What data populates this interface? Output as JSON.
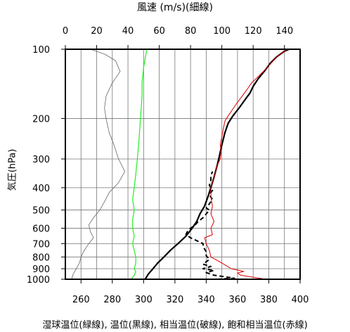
{
  "chart_data": {
    "type": "line",
    "title_top": "風速 (m/s)(細線)",
    "ylabel": "気圧(hPa)",
    "caption": "湿球温位(緑線), 温位(黒線), 相当温位(破線), 飽和相当温位(赤線)",
    "y_scale": "log",
    "ylim": [
      1000,
      100
    ],
    "y_ticks": [
      100,
      200,
      300,
      400,
      500,
      600,
      700,
      800,
      900,
      1000
    ],
    "x_bottom": {
      "ticks": [
        260,
        280,
        300,
        320,
        340,
        360,
        380,
        400
      ],
      "lim": [
        250,
        400
      ]
    },
    "x_top": {
      "ticks": [
        0,
        20,
        40,
        60,
        80,
        100,
        120,
        140
      ],
      "lim": [
        0,
        150
      ]
    },
    "grid": true,
    "series": [
      {
        "color": "#000000",
        "style": "solid",
        "width": 2.2,
        "axis": "bottom",
        "points": [
          [
            301,
            1000
          ],
          [
            303,
            950
          ],
          [
            306,
            900
          ],
          [
            309,
            850
          ],
          [
            313,
            800
          ],
          [
            317,
            750
          ],
          [
            322,
            700
          ],
          [
            327,
            650
          ],
          [
            331,
            600
          ],
          [
            334,
            560
          ],
          [
            336,
            520
          ],
          [
            339,
            480
          ],
          [
            341,
            440
          ],
          [
            343,
            400
          ],
          [
            345,
            360
          ],
          [
            347,
            320
          ],
          [
            348.5,
            290
          ],
          [
            350,
            260
          ],
          [
            352,
            230
          ],
          [
            354,
            210
          ],
          [
            357,
            195
          ],
          [
            361,
            180
          ],
          [
            365,
            165
          ],
          [
            368,
            155
          ],
          [
            370,
            145
          ],
          [
            373,
            135
          ],
          [
            377,
            125
          ],
          [
            381,
            115
          ],
          [
            385,
            108
          ],
          [
            390,
            102
          ],
          [
            393,
            100
          ]
        ]
      },
      {
        "color": "#000000",
        "style": "dashed",
        "width": 2,
        "axis": "bottom",
        "points": [
          [
            347,
            1000
          ],
          [
            358,
            990
          ],
          [
            345,
            960
          ],
          [
            340,
            935
          ],
          [
            345,
            915
          ],
          [
            338,
            900
          ],
          [
            343,
            880
          ],
          [
            338,
            860
          ],
          [
            342,
            820
          ],
          [
            340,
            790
          ],
          [
            340,
            760
          ],
          [
            338,
            720
          ],
          [
            338,
            700
          ],
          [
            334,
            680
          ],
          [
            330,
            660
          ],
          [
            327,
            640
          ],
          [
            328,
            620
          ],
          [
            330,
            600
          ],
          [
            333,
            580
          ],
          [
            335,
            560
          ],
          [
            338,
            540
          ],
          [
            340,
            520
          ],
          [
            342,
            500
          ],
          [
            340,
            490
          ],
          [
            342,
            470
          ],
          [
            344,
            450
          ],
          [
            342,
            430
          ],
          [
            344,
            410
          ],
          [
            342,
            390
          ],
          [
            343,
            370
          ],
          [
            343,
            355
          ],
          [
            344,
            340
          ]
        ]
      },
      {
        "color": "#dd0000",
        "style": "solid",
        "width": 1,
        "axis": "bottom",
        "points": [
          [
            378,
            1000
          ],
          [
            370,
            980
          ],
          [
            362,
            960
          ],
          [
            360,
            940
          ],
          [
            364,
            925
          ],
          [
            356,
            900
          ],
          [
            350,
            850
          ],
          [
            343,
            800
          ],
          [
            342,
            750
          ],
          [
            340,
            700
          ],
          [
            339,
            660
          ],
          [
            344,
            640
          ],
          [
            343,
            600
          ],
          [
            345,
            560
          ],
          [
            343,
            520
          ],
          [
            344,
            480
          ],
          [
            343,
            440
          ],
          [
            343,
            420
          ],
          [
            343,
            400
          ],
          [
            344,
            380
          ],
          [
            345,
            360
          ],
          [
            346,
            340
          ],
          [
            347,
            320
          ],
          [
            349,
            300
          ],
          [
            349.5,
            280
          ],
          [
            349,
            260
          ],
          [
            350,
            240
          ],
          [
            351,
            220
          ],
          [
            352,
            205
          ],
          [
            354,
            195
          ],
          [
            357,
            182
          ],
          [
            360,
            170
          ],
          [
            363,
            160
          ],
          [
            366,
            150
          ],
          [
            369,
            140
          ],
          [
            373,
            132
          ],
          [
            377,
            124
          ],
          [
            381,
            116
          ],
          [
            385,
            108
          ],
          [
            389,
            103
          ],
          [
            392,
            100
          ]
        ]
      },
      {
        "color": "#22ee22",
        "style": "solid",
        "width": 1.2,
        "axis": "bottom",
        "points": [
          [
            292,
            1000
          ],
          [
            294,
            960
          ],
          [
            295,
            930
          ],
          [
            294,
            900
          ],
          [
            295,
            850
          ],
          [
            295,
            800
          ],
          [
            294,
            750
          ],
          [
            293,
            700
          ],
          [
            294,
            650
          ],
          [
            293,
            600
          ],
          [
            293,
            550
          ],
          [
            294,
            500
          ],
          [
            293,
            450
          ],
          [
            294,
            400
          ],
          [
            295,
            350
          ],
          [
            296,
            300
          ],
          [
            297,
            250
          ],
          [
            298,
            200
          ],
          [
            299,
            160
          ],
          [
            299,
            140
          ],
          [
            300,
            120
          ],
          [
            301,
            110
          ],
          [
            302,
            100
          ]
        ]
      },
      {
        "color": "#666666",
        "style": "solid",
        "width": 0.8,
        "axis": "top",
        "points": [
          [
            4,
            1000
          ],
          [
            5,
            950
          ],
          [
            7,
            900
          ],
          [
            9,
            850
          ],
          [
            10,
            800
          ],
          [
            12,
            750
          ],
          [
            15,
            700
          ],
          [
            18,
            660
          ],
          [
            16,
            620
          ],
          [
            15,
            580
          ],
          [
            18,
            540
          ],
          [
            22,
            500
          ],
          [
            25,
            460
          ],
          [
            28,
            420
          ],
          [
            34,
            380
          ],
          [
            38,
            340
          ],
          [
            34,
            300
          ],
          [
            31,
            260
          ],
          [
            28,
            230
          ],
          [
            26,
            200
          ],
          [
            25,
            180
          ],
          [
            26,
            160
          ],
          [
            30,
            140
          ],
          [
            35,
            125
          ],
          [
            32,
            112
          ],
          [
            25,
            105
          ],
          [
            16,
            100
          ]
        ]
      }
    ]
  }
}
